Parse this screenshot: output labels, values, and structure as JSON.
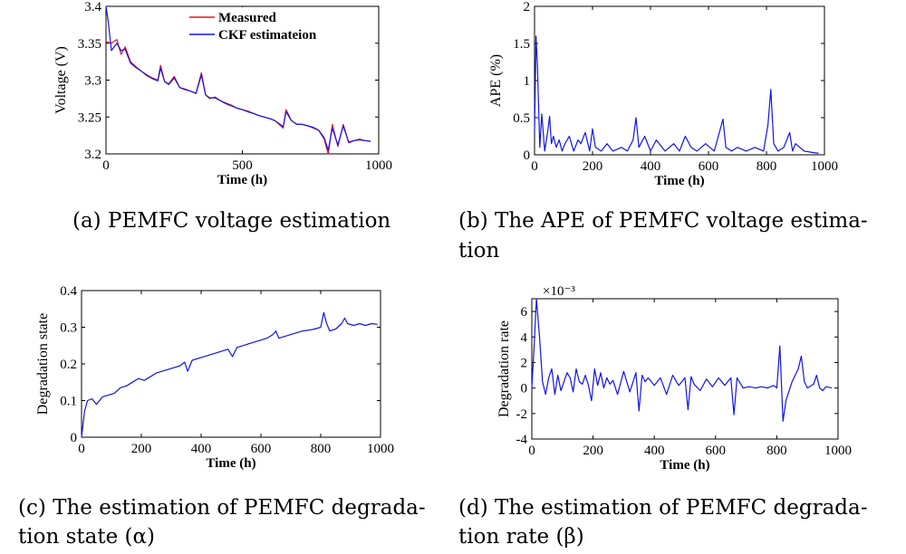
{
  "captions": {
    "a": "(a) PEMFC voltage estimation",
    "b1": "(b) The APE of PEMFC voltage estima-",
    "b2": "tion",
    "c1": "(c) The estimation of PEMFC degrada-",
    "c2": "tion state (α)",
    "d1": "(d) The estimation of PEMFC degrada-",
    "d2": "tion rate (β)"
  },
  "colors": {
    "measured": "#e8101a",
    "estimate": "#1414e6",
    "axis": "#000000"
  },
  "chart_data": [
    {
      "id": "a",
      "type": "line",
      "xlabel": "Time (h)",
      "ylabel": "Voltage (V)",
      "xlim": [
        0,
        1000
      ],
      "ylim": [
        3.2,
        3.4
      ],
      "xticks": [
        0,
        500,
        1000
      ],
      "yticks": [
        3.2,
        3.25,
        3.3,
        3.35,
        3.4
      ],
      "ytick_labels": [
        "3.2",
        "3.25",
        "3.3",
        "3.35",
        "3.4"
      ],
      "legend": [
        "Measured",
        "CKF estimateion"
      ],
      "series": [
        {
          "name": "Measured",
          "color": "#e8101a",
          "x": [
            0,
            20,
            40,
            55,
            70,
            90,
            110,
            130,
            150,
            170,
            190,
            200,
            215,
            230,
            250,
            270,
            290,
            310,
            330,
            350,
            365,
            380,
            400,
            420,
            440,
            460,
            480,
            500,
            520,
            540,
            560,
            580,
            600,
            620,
            650,
            660,
            680,
            700,
            720,
            740,
            760,
            780,
            800,
            815,
            830,
            850,
            870,
            890,
            910,
            930,
            950,
            970
          ],
          "y": [
            3.352,
            3.35,
            3.355,
            3.335,
            3.345,
            3.325,
            3.318,
            3.312,
            3.307,
            3.303,
            3.3,
            3.32,
            3.298,
            3.295,
            3.305,
            3.29,
            3.288,
            3.285,
            3.282,
            3.31,
            3.28,
            3.275,
            3.277,
            3.272,
            3.269,
            3.266,
            3.262,
            3.26,
            3.258,
            3.255,
            3.252,
            3.25,
            3.248,
            3.245,
            3.235,
            3.26,
            3.245,
            3.24,
            3.24,
            3.238,
            3.235,
            3.232,
            3.22,
            3.2,
            3.24,
            3.21,
            3.24,
            3.215,
            3.218,
            3.22,
            3.218,
            3.217
          ]
        },
        {
          "name": "CKF estimateion",
          "color": "#1414e6",
          "x": [
            0,
            8,
            20,
            40,
            55,
            70,
            90,
            110,
            130,
            150,
            170,
            190,
            200,
            215,
            230,
            250,
            270,
            290,
            310,
            330,
            350,
            365,
            380,
            400,
            420,
            440,
            460,
            480,
            500,
            520,
            540,
            560,
            580,
            600,
            620,
            650,
            660,
            680,
            700,
            720,
            740,
            760,
            780,
            800,
            815,
            830,
            850,
            870,
            890,
            910,
            930,
            950,
            970
          ],
          "y": [
            3.4,
            3.38,
            3.34,
            3.35,
            3.34,
            3.342,
            3.323,
            3.317,
            3.312,
            3.306,
            3.302,
            3.299,
            3.316,
            3.298,
            3.294,
            3.303,
            3.29,
            3.287,
            3.285,
            3.282,
            3.307,
            3.28,
            3.276,
            3.276,
            3.272,
            3.268,
            3.265,
            3.262,
            3.26,
            3.257,
            3.255,
            3.252,
            3.25,
            3.248,
            3.245,
            3.237,
            3.257,
            3.245,
            3.24,
            3.24,
            3.238,
            3.236,
            3.232,
            3.222,
            3.205,
            3.235,
            3.212,
            3.238,
            3.216,
            3.218,
            3.219,
            3.218,
            3.217
          ]
        }
      ]
    },
    {
      "id": "b",
      "type": "line",
      "xlabel": "Time (h)",
      "ylabel": "APE (%)",
      "xlim": [
        0,
        1000
      ],
      "ylim": [
        0,
        2
      ],
      "xticks": [
        0,
        200,
        400,
        600,
        800,
        1000
      ],
      "yticks": [
        0,
        0.5,
        1,
        1.5,
        2
      ],
      "ytick_labels": [
        "0",
        "0.5",
        "1",
        "1.5",
        "2"
      ],
      "series": [
        {
          "name": "",
          "color": "#1414e6",
          "x": [
            0,
            5,
            10,
            18,
            25,
            35,
            45,
            52,
            58,
            65,
            75,
            85,
            95,
            105,
            120,
            135,
            150,
            160,
            175,
            190,
            200,
            210,
            230,
            250,
            270,
            300,
            320,
            340,
            350,
            360,
            380,
            400,
            420,
            450,
            480,
            500,
            520,
            540,
            560,
            590,
            620,
            650,
            660,
            680,
            700,
            730,
            760,
            790,
            805,
            815,
            825,
            840,
            860,
            880,
            890,
            900,
            930,
            960,
            980
          ],
          "y": [
            0.3,
            1.6,
            1.2,
            0.1,
            0.55,
            0.05,
            0.3,
            0.52,
            0.15,
            0.25,
            0.1,
            0.2,
            0.05,
            0.15,
            0.25,
            0.05,
            0.2,
            0.15,
            0.3,
            0.05,
            0.35,
            0.1,
            0.05,
            0.15,
            0.05,
            0.1,
            0.05,
            0.2,
            0.5,
            0.1,
            0.25,
            0.05,
            0.2,
            0.05,
            0.15,
            0.05,
            0.25,
            0.1,
            0.05,
            0.15,
            0.05,
            0.48,
            0.1,
            0.05,
            0.1,
            0.05,
            0.1,
            0.05,
            0.4,
            0.88,
            0.15,
            0.05,
            0.1,
            0.3,
            0.05,
            0.15,
            0.05,
            0.03,
            0.02
          ]
        }
      ]
    },
    {
      "id": "c",
      "type": "line",
      "xlabel": "Time (h)",
      "ylabel": "Degradation state",
      "xlim": [
        0,
        1000
      ],
      "ylim": [
        0,
        0.4
      ],
      "xticks": [
        0,
        200,
        400,
        600,
        800,
        1000
      ],
      "yticks": [
        0,
        0.1,
        0.2,
        0.3,
        0.4
      ],
      "ytick_labels": [
        "0",
        "0.1",
        "0.2",
        "0.3",
        "0.4"
      ],
      "series": [
        {
          "name": "",
          "color": "#1414e6",
          "x": [
            0,
            10,
            20,
            35,
            50,
            70,
            90,
            110,
            130,
            150,
            170,
            190,
            210,
            230,
            250,
            270,
            290,
            310,
            330,
            345,
            355,
            370,
            390,
            410,
            430,
            450,
            470,
            490,
            505,
            520,
            540,
            560,
            580,
            600,
            620,
            640,
            650,
            660,
            680,
            700,
            720,
            740,
            760,
            780,
            800,
            810,
            820,
            830,
            850,
            870,
            880,
            890,
            910,
            930,
            950,
            970,
            990
          ],
          "y": [
            0,
            0.07,
            0.1,
            0.105,
            0.09,
            0.11,
            0.115,
            0.12,
            0.135,
            0.14,
            0.15,
            0.16,
            0.155,
            0.165,
            0.175,
            0.18,
            0.185,
            0.19,
            0.195,
            0.205,
            0.18,
            0.21,
            0.215,
            0.22,
            0.225,
            0.23,
            0.235,
            0.24,
            0.22,
            0.245,
            0.25,
            0.255,
            0.26,
            0.265,
            0.27,
            0.28,
            0.29,
            0.27,
            0.275,
            0.28,
            0.285,
            0.29,
            0.292,
            0.295,
            0.3,
            0.34,
            0.31,
            0.29,
            0.295,
            0.31,
            0.325,
            0.31,
            0.305,
            0.31,
            0.305,
            0.31,
            0.308
          ]
        }
      ]
    },
    {
      "id": "d",
      "type": "line",
      "xlabel": "Time (h)",
      "ylabel": "Degradation rate",
      "scale_label": "×10⁻³",
      "xlim": [
        0,
        1000
      ],
      "ylim": [
        -4,
        7
      ],
      "xticks": [
        0,
        200,
        400,
        600,
        800,
        1000
      ],
      "yticks": [
        -4,
        -2,
        0,
        2,
        4,
        6
      ],
      "ytick_labels": [
        "-4",
        "-2",
        "0",
        "2",
        "4",
        "6"
      ],
      "series": [
        {
          "name": "",
          "color": "#1414e6",
          "x": [
            0,
            8,
            15,
            25,
            35,
            45,
            55,
            65,
            75,
            85,
            95,
            105,
            115,
            125,
            135,
            145,
            155,
            165,
            175,
            185,
            195,
            205,
            215,
            225,
            235,
            245,
            255,
            265,
            280,
            300,
            320,
            340,
            350,
            360,
            370,
            380,
            400,
            420,
            440,
            460,
            480,
            500,
            510,
            520,
            530,
            550,
            570,
            590,
            610,
            630,
            650,
            660,
            670,
            690,
            710,
            730,
            750,
            770,
            790,
            800,
            810,
            820,
            830,
            850,
            870,
            880,
            890,
            900,
            920,
            930,
            940,
            950,
            960,
            980
          ],
          "y": [
            0,
            3.5,
            7,
            4,
            0.5,
            -0.5,
            0.8,
            1.5,
            -0.5,
            1.0,
            -0.2,
            0.5,
            1.2,
            0.8,
            -0.3,
            1.5,
            0.5,
            0.3,
            1.0,
            0.2,
            -1.0,
            1.5,
            0.2,
            1.2,
            0.0,
            0.8,
            0.3,
            0.6,
            -0.5,
            1.3,
            -0.3,
            1.2,
            -1.8,
            1.0,
            0.5,
            0.8,
            0.2,
            0.8,
            -0.5,
            1.0,
            0.2,
            0.8,
            -1.7,
            0.9,
            0.3,
            -0.2,
            0.7,
            0.1,
            0.8,
            0.2,
            0.8,
            -2.1,
            0.8,
            0.0,
            0.1,
            0.0,
            0.1,
            0.0,
            0.2,
            0.0,
            3.3,
            -2.6,
            -1.0,
            0.5,
            1.5,
            2.5,
            0.5,
            0.0,
            0.3,
            1.0,
            0.0,
            -0.2,
            0.1,
            0.0
          ]
        }
      ]
    }
  ]
}
